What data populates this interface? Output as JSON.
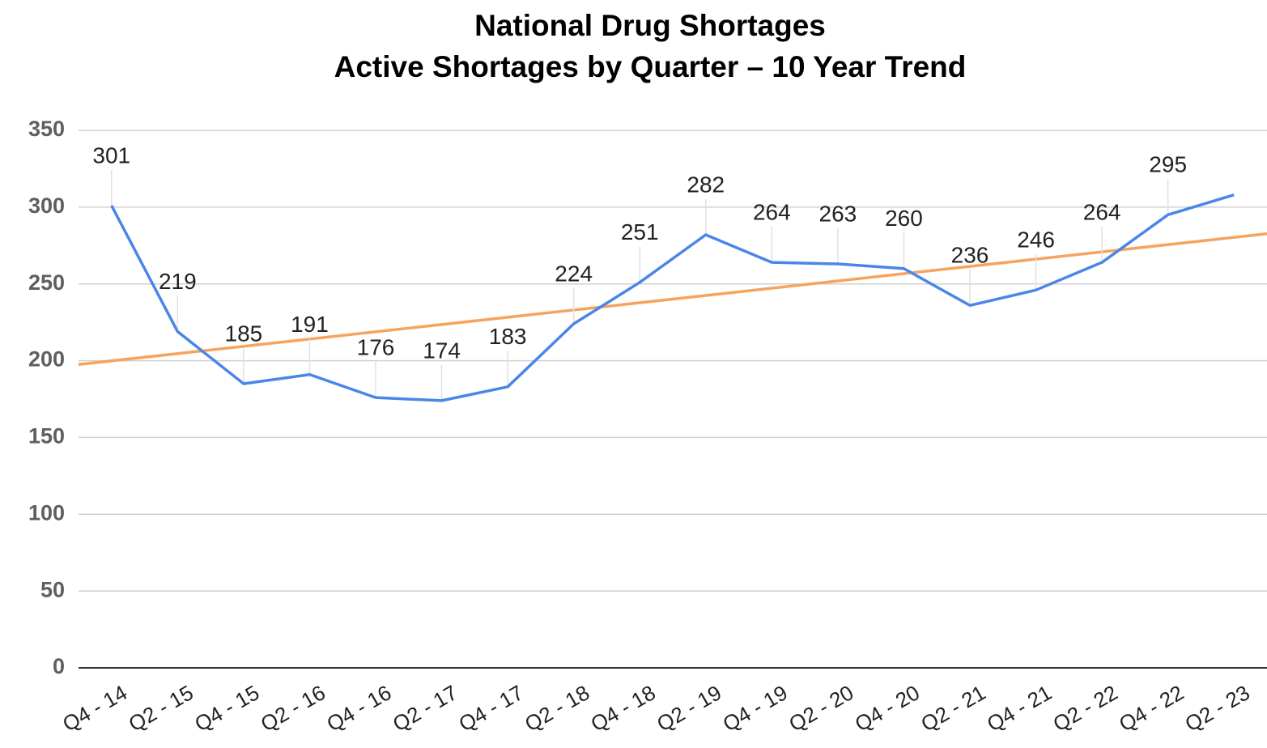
{
  "chart_data": {
    "type": "line",
    "title": "National Drug Shortages",
    "subtitle": "Active Shortages by Quarter – 10 Year Trend",
    "categories": [
      "Q4 - 14",
      "Q2 - 15",
      "Q4 - 15",
      "Q2 - 16",
      "Q4 - 16",
      "Q2 - 17",
      "Q4 - 17",
      "Q2 - 18",
      "Q4 - 18",
      "Q2 - 19",
      "Q4 - 19",
      "Q2 - 20",
      "Q4 - 20",
      "Q2 - 21",
      "Q4 - 21",
      "Q2 - 22",
      "Q4 - 22",
      "Q2 - 23"
    ],
    "series": [
      {
        "color": "#4a86e8",
        "values": [
          301,
          219,
          185,
          191,
          176,
          174,
          183,
          224,
          251,
          282,
          264,
          263,
          260,
          236,
          246,
          264,
          295,
          308
        ],
        "value_labels": [
          "301",
          "219",
          "185",
          "191",
          "176",
          "174",
          "183",
          "224",
          "251",
          "282",
          "264",
          "263",
          "260",
          "236",
          "246",
          "264",
          "295",
          null
        ]
      }
    ],
    "trendline": {
      "type": "linear",
      "color": "#f6a35d"
    },
    "ylim": [
      0,
      350
    ],
    "yticks": [
      0,
      50,
      100,
      150,
      200,
      250,
      300,
      350
    ],
    "grid": true
  }
}
